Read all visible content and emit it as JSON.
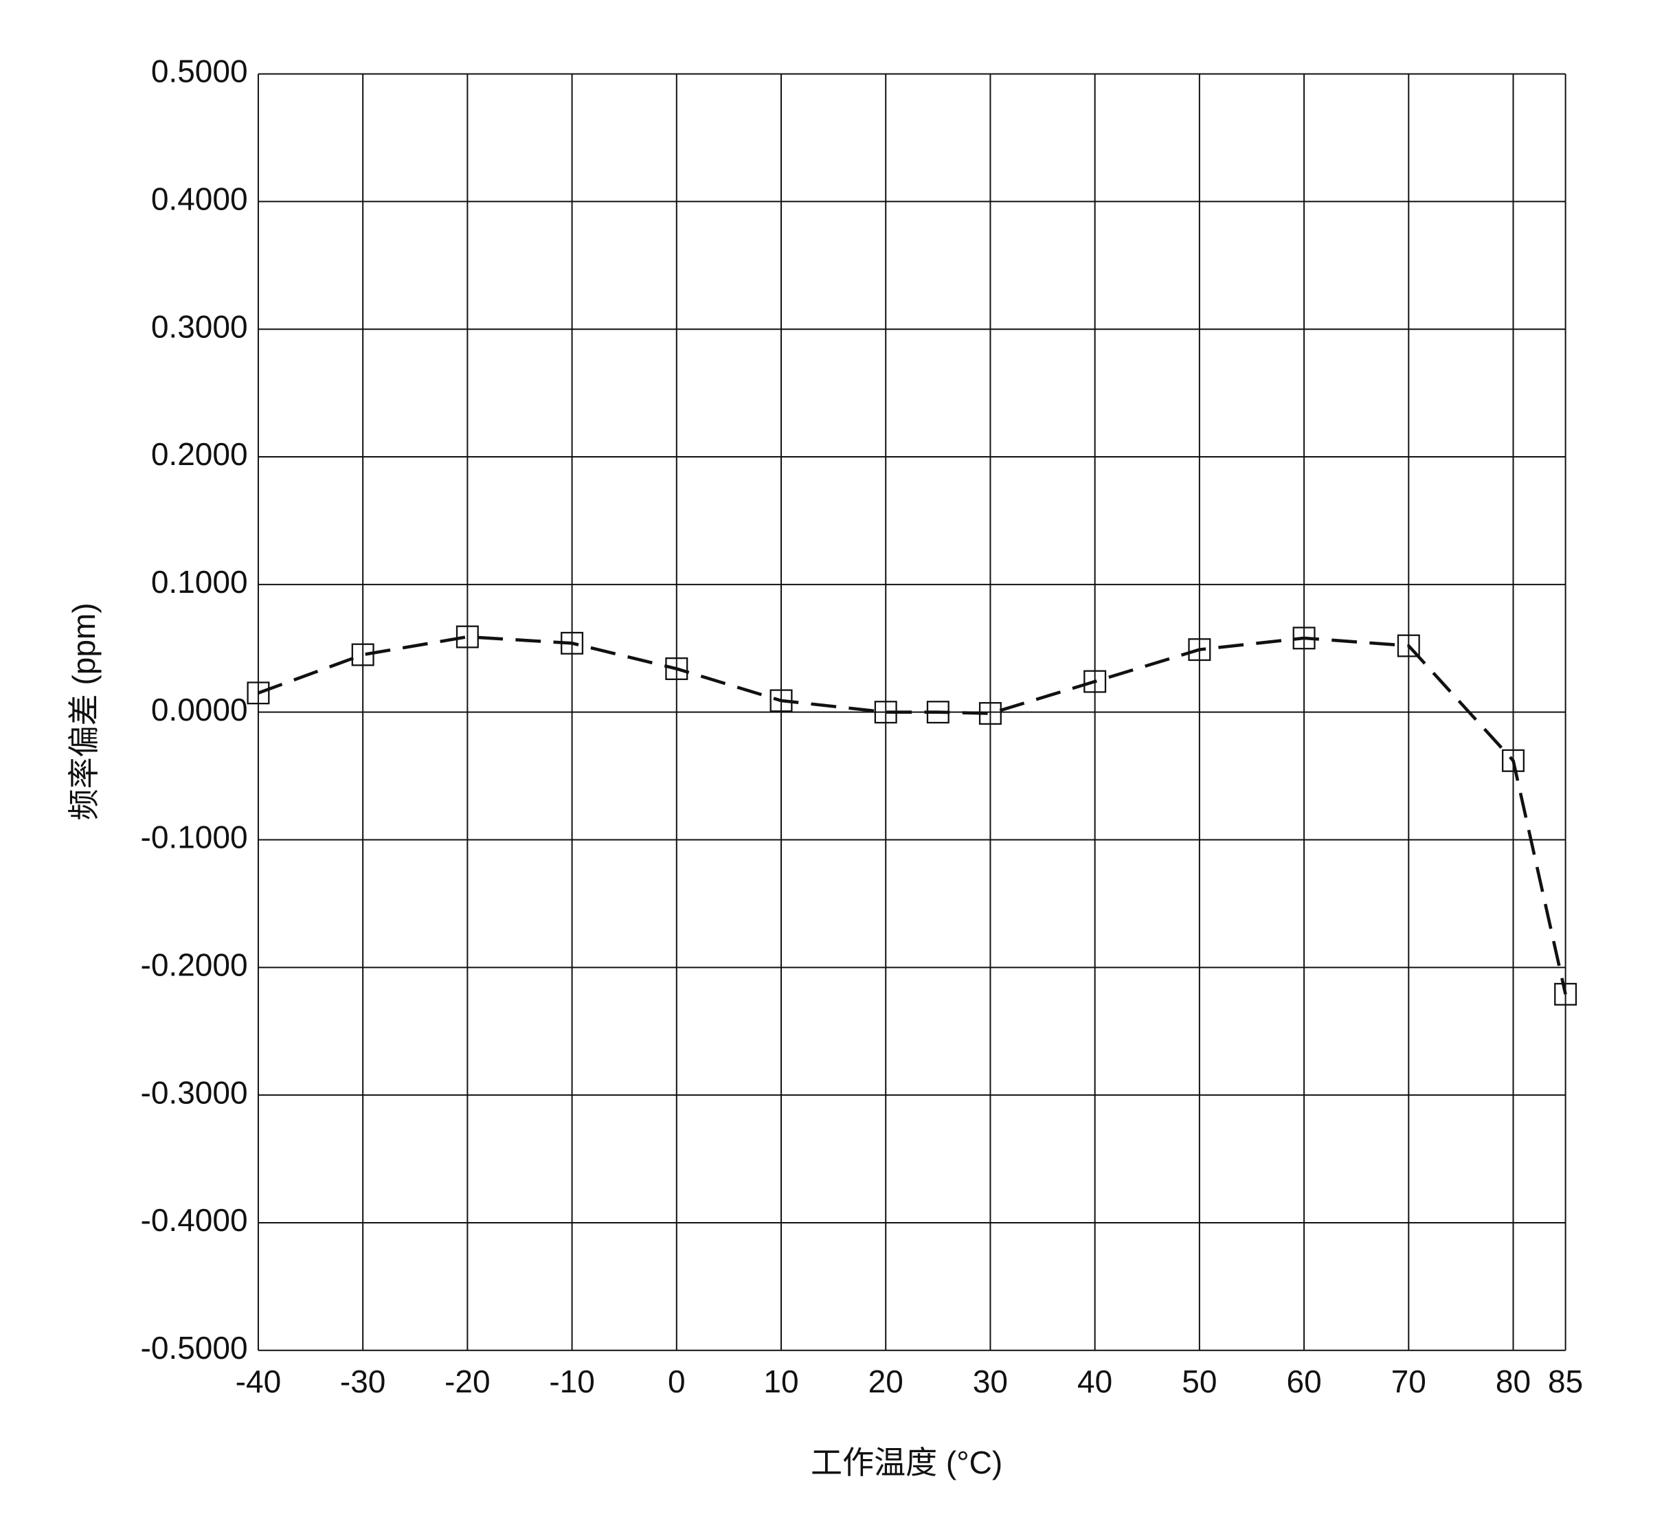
{
  "chart_data": {
    "type": "line",
    "x_label": "工作温度 (°C)",
    "y_label": "频率偏差 (ppm)",
    "x": [
      -40,
      -30,
      -20,
      -10,
      0,
      10,
      20,
      25,
      30,
      40,
      50,
      60,
      70,
      80,
      85
    ],
    "values": [
      0.015,
      0.045,
      0.059,
      0.054,
      0.034,
      0.009,
      0.0,
      0.0,
      -0.001,
      0.024,
      0.049,
      0.058,
      0.052,
      -0.038,
      -0.221
    ],
    "color": "#111111",
    "line_style": "dashed",
    "marker": "hollow-square",
    "xlim": [
      -40,
      85
    ],
    "xticks": [
      -40,
      -30,
      -20,
      -10,
      0,
      10,
      20,
      30,
      40,
      50,
      60,
      70,
      80,
      85
    ],
    "ylim": [
      -0.5,
      0.5
    ],
    "yticks": [
      {
        "value": -0.5,
        "label": "-0.5000"
      },
      {
        "value": -0.4,
        "label": "-0.4000"
      },
      {
        "value": -0.3,
        "label": "-0.3000"
      },
      {
        "value": -0.2,
        "label": "-0.2000"
      },
      {
        "value": -0.1,
        "label": "-0.1000"
      },
      {
        "value": 0,
        "label": "0.0000"
      },
      {
        "value": 0.1,
        "label": "0.1000"
      },
      {
        "value": 0.2,
        "label": "0.2000"
      },
      {
        "value": 0.3,
        "label": "0.3000"
      },
      {
        "value": 0.4,
        "label": "0.4000"
      },
      {
        "value": 0.5,
        "label": "0.5000"
      }
    ],
    "grid": true
  }
}
